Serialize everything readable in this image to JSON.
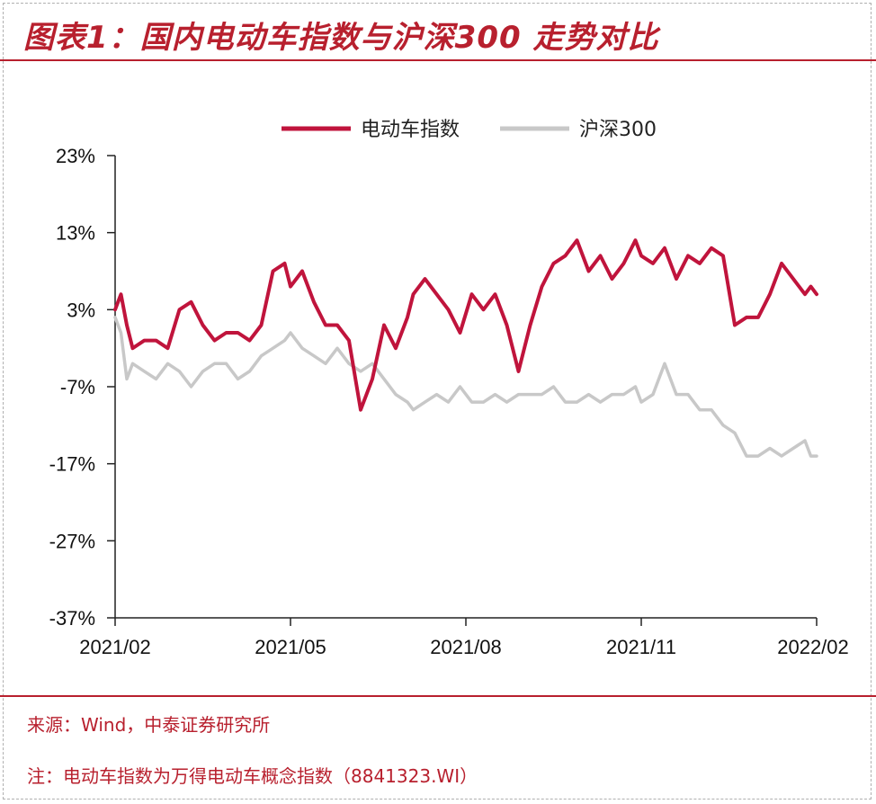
{
  "title": "图表1：国内电动车指数与沪深300 走势对比",
  "footer": {
    "source": "来源：Wind，中泰证券研究所",
    "note": "注：电动车指数为万得电动车概念指数（8841323.WI）"
  },
  "colors": {
    "series1": "#c0143c",
    "series2": "#c8c8c8",
    "brand": "#b8202e"
  },
  "chart_data": {
    "type": "line",
    "title": "",
    "xlabel": "",
    "ylabel": "",
    "x_range": [
      0,
      12
    ],
    "x_ticks": [
      {
        "x": 0,
        "label": "2021/02"
      },
      {
        "x": 3,
        "label": "2021/05"
      },
      {
        "x": 6,
        "label": "2021/08"
      },
      {
        "x": 9,
        "label": "2021/11"
      },
      {
        "x": 12,
        "label": "2022/02"
      }
    ],
    "ylim": [
      -37,
      23
    ],
    "y_ticks": [
      {
        "v": 23,
        "label": "23%"
      },
      {
        "v": 13,
        "label": "13%"
      },
      {
        "v": 3,
        "label": "3%"
      },
      {
        "v": -7,
        "label": "-7%"
      },
      {
        "v": -17,
        "label": "-17%"
      },
      {
        "v": -27,
        "label": "-27%"
      },
      {
        "v": -37,
        "label": "-37%"
      }
    ],
    "grid": false,
    "legend": "top-center",
    "series": [
      {
        "name": "电动车指数",
        "x": [
          0,
          0.1,
          0.2,
          0.3,
          0.5,
          0.7,
          0.9,
          1.1,
          1.3,
          1.5,
          1.7,
          1.9,
          2.1,
          2.3,
          2.5,
          2.7,
          2.9,
          3.0,
          3.2,
          3.4,
          3.6,
          3.8,
          4.0,
          4.2,
          4.4,
          4.6,
          4.8,
          5.0,
          5.1,
          5.3,
          5.5,
          5.7,
          5.9,
          6.1,
          6.3,
          6.5,
          6.7,
          6.9,
          7.1,
          7.3,
          7.5,
          7.7,
          7.9,
          8.1,
          8.3,
          8.5,
          8.7,
          8.9,
          9.0,
          9.2,
          9.4,
          9.6,
          9.8,
          10.0,
          10.2,
          10.4,
          10.6,
          10.8,
          11.0,
          11.2,
          11.4,
          11.6,
          11.8,
          11.9,
          12.0
        ],
        "values": [
          3,
          5,
          1,
          -2,
          -1,
          -1,
          -2,
          3,
          4,
          1,
          -1,
          0,
          0,
          -1,
          1,
          8,
          9,
          6,
          8,
          4,
          1,
          1,
          -1,
          -10,
          -6,
          1,
          -2,
          2,
          5,
          7,
          5,
          3,
          0,
          5,
          3,
          5,
          1,
          -5,
          1,
          6,
          9,
          10,
          12,
          8,
          10,
          7,
          9,
          12,
          10,
          9,
          11,
          7,
          10,
          9,
          11,
          10,
          1,
          2,
          2,
          5,
          9,
          7,
          5,
          6,
          5
        ]
      },
      {
        "name": "沪深300",
        "x": [
          0,
          0.1,
          0.2,
          0.3,
          0.5,
          0.7,
          0.9,
          1.1,
          1.3,
          1.5,
          1.7,
          1.9,
          2.1,
          2.3,
          2.5,
          2.7,
          2.9,
          3.0,
          3.2,
          3.4,
          3.6,
          3.8,
          4.0,
          4.2,
          4.4,
          4.6,
          4.8,
          5.0,
          5.1,
          5.3,
          5.5,
          5.7,
          5.9,
          6.1,
          6.3,
          6.5,
          6.7,
          6.9,
          7.1,
          7.3,
          7.5,
          7.7,
          7.9,
          8.1,
          8.3,
          8.5,
          8.7,
          8.9,
          9.0,
          9.2,
          9.4,
          9.6,
          9.8,
          10.0,
          10.2,
          10.4,
          10.6,
          10.8,
          11.0,
          11.2,
          11.4,
          11.6,
          11.8,
          11.9,
          12.0
        ],
        "values": [
          2,
          0,
          -6,
          -4,
          -5,
          -6,
          -4,
          -5,
          -7,
          -5,
          -4,
          -4,
          -6,
          -5,
          -3,
          -2,
          -1,
          0,
          -2,
          -3,
          -4,
          -2,
          -4,
          -5,
          -4,
          -6,
          -8,
          -9,
          -10,
          -9,
          -8,
          -9,
          -7,
          -9,
          -9,
          -8,
          -9,
          -8,
          -8,
          -8,
          -7,
          -9,
          -9,
          -8,
          -9,
          -8,
          -8,
          -7,
          -9,
          -8,
          -4,
          -8,
          -8,
          -10,
          -10,
          -12,
          -13,
          -16,
          -16,
          -15,
          -16,
          -15,
          -14,
          -16,
          -16
        ]
      }
    ]
  }
}
